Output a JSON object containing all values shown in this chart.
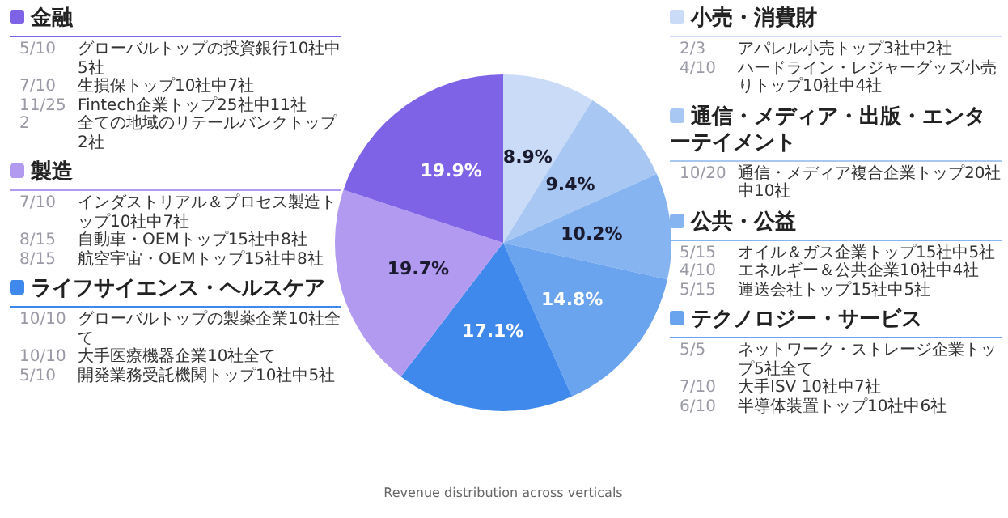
{
  "chart_data": {
    "type": "pie",
    "categories": [
      "小売・消費財",
      "通信・メディア・出版・エンターテイメント",
      "公共・公益",
      "テクノロジー・サービス",
      "ライフサイエンス・ヘルスケア",
      "製造",
      "金融"
    ],
    "values": [
      8.9,
      9.4,
      10.2,
      14.8,
      17.1,
      19.7,
      19.9
    ],
    "value_labels": [
      "8.9%",
      "9.4%",
      "10.2%",
      "14.8%",
      "17.1%",
      "19.7%",
      "19.9%"
    ],
    "legend": "top",
    "colors": [
      "#c9dbf7",
      "#a8c8f3",
      "#86b4f0",
      "#6aa3ee",
      "#3f88ec",
      "#b29af0",
      "#7e63e6"
    ],
    "annotations": [
      {
        "text": "2/3 アパレル小売トップ3社中2社",
        "x": "小売・消費財"
      },
      {
        "text": "4/10 ハードライン・レジャーグッズ小売りトップ10社中4社",
        "x": "小売・消費財"
      },
      {
        "text": "10/20 通信・メディア複合企業トップ20社中10社",
        "x": "通信・メディア・出版・エンターテイメント"
      },
      {
        "text": "5/15 オイル＆ガス企業トップ15社中5社",
        "x": "公共・公益"
      },
      {
        "text": "4/10 エネルギー＆公共企業10社中4社",
        "x": "公共・公益"
      },
      {
        "text": "5/15 運送会社トップ15社中5社",
        "x": "公共・公益"
      },
      {
        "text": "5/5 ネットワーク・ストレージ企業トップ5社全て",
        "x": "テクノロジー・サービス"
      },
      {
        "text": "7/10 大手ISV 10社中7社",
        "x": "テクノロジー・サービス"
      },
      {
        "text": "6/10 半導体装置トップ10社中6社",
        "x": "テクノロジー・サービス"
      },
      {
        "text": "10/10 グローバルトップの製薬企業10社全て",
        "x": "ライフサイエンス・ヘルスケア"
      },
      {
        "text": "10/10 大手医療機器企業10社全て",
        "x": "ライフサイエンス・ヘルスケア"
      },
      {
        "text": "5/10 開発業務受託機関トップ10社中5社",
        "x": "ライフサイエンス・ヘルスケア"
      },
      {
        "text": "7/10 インダストリアル＆プロセス製造トップ10社中7社",
        "x": "製造"
      },
      {
        "text": "8/15 自動車・OEMトップ15社中8社",
        "x": "製造"
      },
      {
        "text": "8/15 航空宇宙・OEMトップ15社中8社",
        "x": "製造"
      },
      {
        "text": "5/10 グローバルトップの投資銀行10社中5社",
        "x": "金融"
      },
      {
        "text": "7/10 生損保トップ10社中7社",
        "x": "金融"
      },
      {
        "text": "11/25 Fintech企業トップ25社中11社",
        "x": "金融"
      },
      {
        "text": "2 全ての地域のリテールバンクトップ2社",
        "x": "金融"
      },
      "Revenue distribution across verticals"
    ]
  }
}
